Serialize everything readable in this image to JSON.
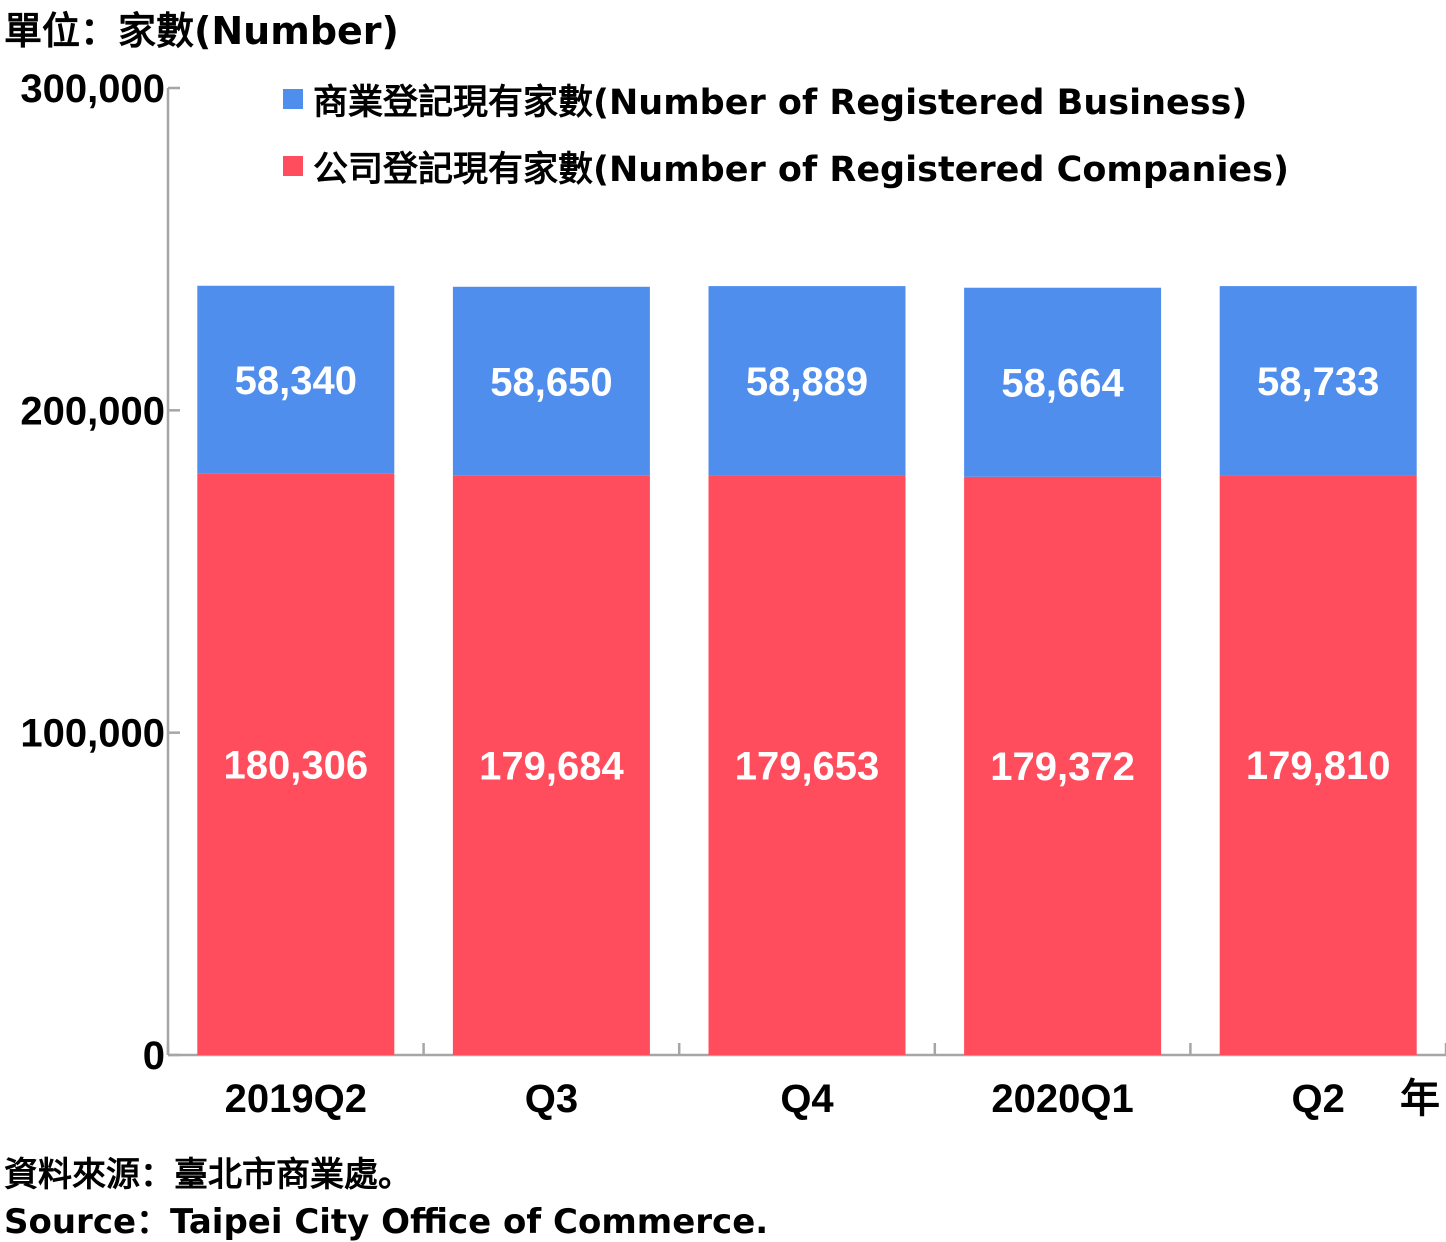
{
  "unit_label": "單位：家數(Number)",
  "year_suffix": "年",
  "source": {
    "zh": "資料來源：臺北市商業處。",
    "en": "Source：Taipei City Office of Commerce."
  },
  "colors": {
    "business": "#4F8EEC",
    "companies": "#FF4D5E",
    "axis": "#A6A6A6"
  },
  "chart_data": {
    "type": "bar",
    "stacked": true,
    "categories": [
      "2019Q2",
      "Q3",
      "Q4",
      "2020Q1",
      "Q2"
    ],
    "series": [
      {
        "key": "companies",
        "name": "公司登記現有家數(Number of Registered Companies)",
        "values": [
          180306,
          179684,
          179653,
          179372,
          179810
        ],
        "labels": [
          "180,306",
          "179,684",
          "179,653",
          "179,372",
          "179,810"
        ]
      },
      {
        "key": "business",
        "name": "商業登記現有家數(Number of Registered Business)",
        "values": [
          58340,
          58650,
          58889,
          58664,
          58733
        ],
        "labels": [
          "58,340",
          "58,650",
          "58,889",
          "58,664",
          "58,733"
        ]
      }
    ],
    "ylim": [
      0,
      300000
    ],
    "yticks": [
      0,
      100000,
      200000,
      300000
    ],
    "ytick_labels": [
      "0",
      "100,000",
      "200,000",
      "300,000"
    ],
    "legend_position": "top",
    "grid": false
  }
}
